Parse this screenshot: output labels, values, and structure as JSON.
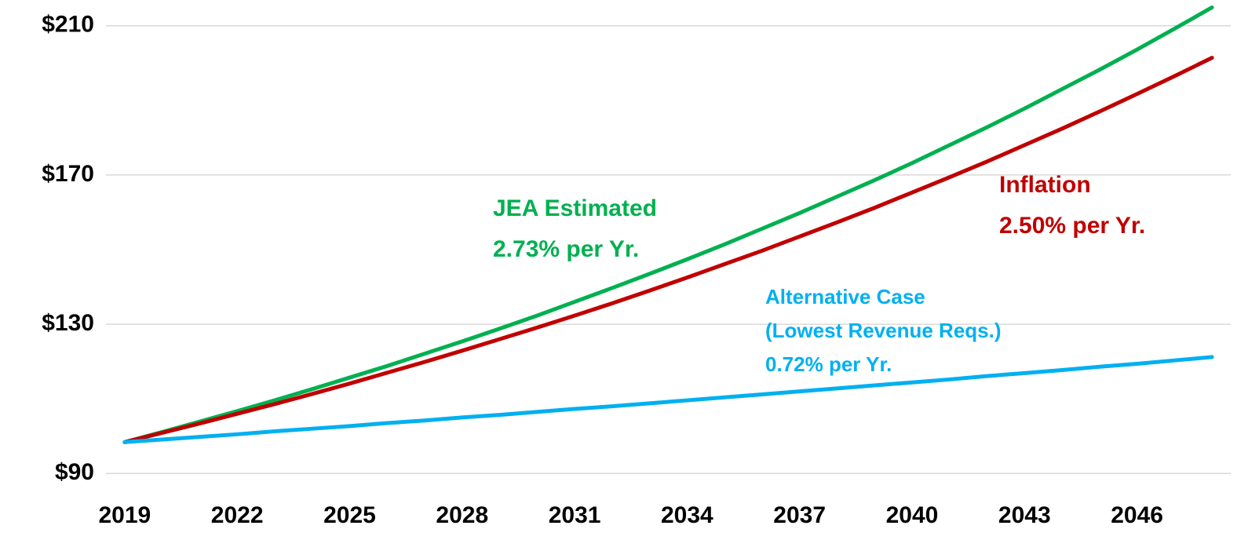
{
  "chart_data": {
    "type": "line",
    "x": [
      2019,
      2020,
      2021,
      2022,
      2023,
      2024,
      2025,
      2026,
      2027,
      2028,
      2029,
      2030,
      2031,
      2032,
      2033,
      2034,
      2035,
      2036,
      2037,
      2038,
      2039,
      2040,
      2041,
      2042,
      2043,
      2044,
      2045,
      2046,
      2047,
      2048
    ],
    "series": [
      {
        "color": "#00b050",
        "values": [
          98.4,
          101.1,
          103.9,
          106.7,
          109.6,
          112.6,
          115.7,
          118.8,
          122.1,
          125.4,
          128.8,
          132.3,
          136.0,
          139.7,
          143.5,
          147.4,
          151.4,
          155.6,
          159.8,
          164.2,
          168.6,
          173.2,
          178.0,
          182.8,
          187.8,
          193.0,
          198.2,
          203.6,
          209.2,
          214.9
        ]
      },
      {
        "color": "#c00000",
        "values": [
          98.4,
          100.9,
          103.4,
          106.0,
          108.6,
          111.3,
          114.1,
          117.0,
          119.9,
          122.9,
          126.0,
          129.1,
          132.3,
          135.6,
          139.0,
          142.5,
          146.1,
          149.7,
          153.5,
          157.3,
          161.2,
          165.3,
          169.4,
          173.6,
          178.0,
          182.4,
          187.0,
          191.7,
          196.5,
          201.4
        ]
      },
      {
        "color": "#00b0f0",
        "values": [
          98.4,
          99.1,
          99.8,
          100.5,
          101.3,
          102.0,
          102.7,
          103.5,
          104.2,
          105.0,
          105.7,
          106.5,
          107.3,
          108.0,
          108.8,
          109.6,
          110.4,
          111.2,
          112.0,
          112.8,
          113.6,
          114.4,
          115.2,
          116.1,
          116.9,
          117.7,
          118.6,
          119.4,
          120.3,
          121.2
        ]
      }
    ],
    "xlim": [
      2018.5,
      2048.5
    ],
    "xticks": [
      2019,
      2022,
      2025,
      2028,
      2031,
      2034,
      2037,
      2040,
      2043,
      2046
    ],
    "ylim": [
      85,
      215
    ],
    "yticks": [
      {
        "value": 90,
        "label": "$90"
      },
      {
        "value": 130,
        "label": "$130"
      },
      {
        "value": 170,
        "label": "$170"
      },
      {
        "value": 210,
        "label": "$210"
      }
    ],
    "grid": true,
    "annotations": [
      {
        "lines": [
          "JEA Estimated",
          "2.73% per Yr."
        ],
        "color": "#00b050"
      },
      {
        "lines": [
          "Inflation",
          "2.50% per Yr."
        ],
        "color": "#c00000"
      },
      {
        "lines": [
          "Alternative Case",
          "(Lowest Revenue Reqs.)",
          "0.72% per Yr."
        ],
        "color": "#00b0f0"
      }
    ]
  }
}
